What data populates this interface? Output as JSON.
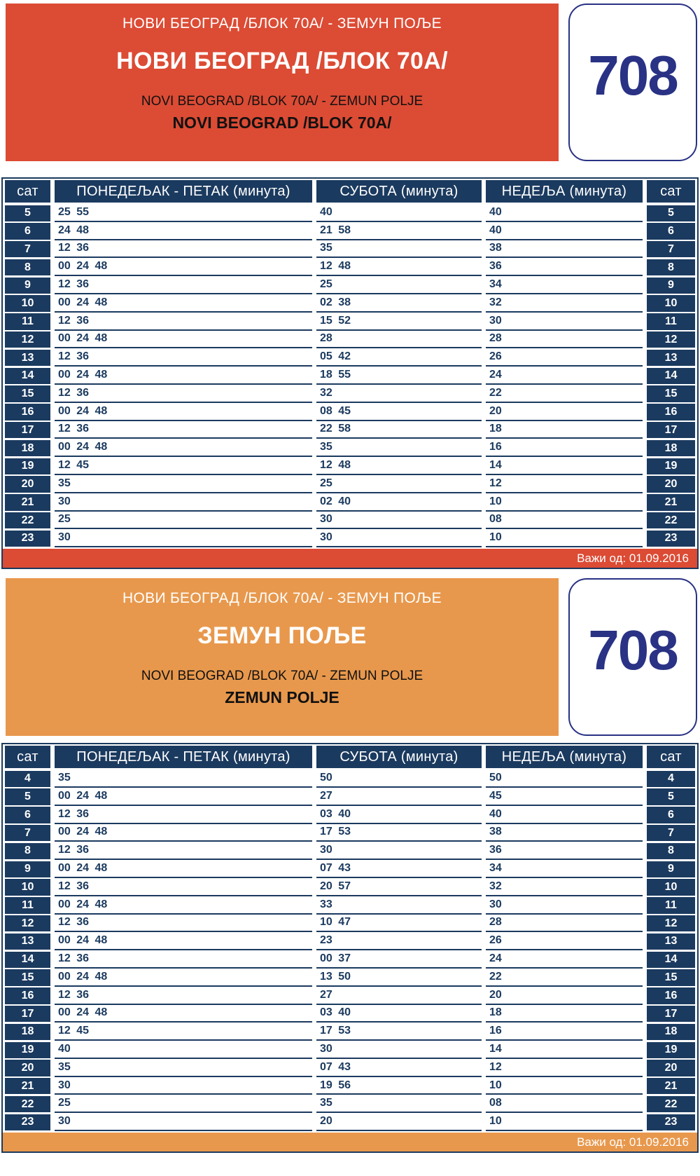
{
  "route_number": "708",
  "valid_from_label": "Важи од: 01.09.2016",
  "colors": {
    "red": "#dc4b34",
    "orange": "#e8984c",
    "navy": "#1b3a5f",
    "route_blue": "#293284"
  },
  "table_headers": {
    "hour": "сат",
    "weekday": "ПОНЕДЕЉАК - ПЕТАК (минута)",
    "saturday": "СУБОТА (минута)",
    "sunday": "НЕДЕЉА (минута)"
  },
  "sections": [
    {
      "name": "novi-beograd-blok-70a",
      "accent": "red",
      "header": {
        "route_cyrillic": "НОВИ БЕОГРАД /БЛОК 70А/ - ЗЕМУН ПОЉЕ",
        "terminal_cyrillic": "НОВИ БЕОГРАД /БЛОК 70А/",
        "route_latin": "NOVI BEOGRAD /BLOK 70A/ - ZEMUN POLJE",
        "terminal_latin": "NOVI BEOGRAD /BLOK 70A/"
      },
      "rows": [
        [
          "5",
          "25 55",
          "40",
          "40"
        ],
        [
          "6",
          "24 48",
          "21 58",
          "40"
        ],
        [
          "7",
          "12 36",
          "35",
          "38"
        ],
        [
          "8",
          "00 24 48",
          "12 48",
          "36"
        ],
        [
          "9",
          "12 36",
          "25",
          "34"
        ],
        [
          "10",
          "00 24 48",
          "02 38",
          "32"
        ],
        [
          "11",
          "12 36",
          "15 52",
          "30"
        ],
        [
          "12",
          "00 24 48",
          "28",
          "28"
        ],
        [
          "13",
          "12 36",
          "05 42",
          "26"
        ],
        [
          "14",
          "00 24 48",
          "18 55",
          "24"
        ],
        [
          "15",
          "12 36",
          "32",
          "22"
        ],
        [
          "16",
          "00 24 48",
          "08 45",
          "20"
        ],
        [
          "17",
          "12 36",
          "22 58",
          "18"
        ],
        [
          "18",
          "00 24 48",
          "35",
          "16"
        ],
        [
          "19",
          "12 45",
          "12 48",
          "14"
        ],
        [
          "20",
          "35",
          "25",
          "12"
        ],
        [
          "21",
          "30",
          "02 40",
          "10"
        ],
        [
          "22",
          "25",
          "30",
          "08"
        ],
        [
          "23",
          "30",
          "30",
          "10"
        ]
      ]
    },
    {
      "name": "zemun-polje",
      "accent": "orange",
      "header": {
        "route_cyrillic": "НОВИ БЕОГРАД /БЛОК 70А/ - ЗЕМУН ПОЉЕ",
        "terminal_cyrillic": "ЗЕМУН ПОЉЕ",
        "route_latin": "NOVI BEOGRAD /BLOK 70A/ - ZEMUN POLJE",
        "terminal_latin": "ZEMUN POLJE"
      },
      "rows": [
        [
          "4",
          "35",
          "50",
          "50"
        ],
        [
          "5",
          "00 24 48",
          "27",
          "45"
        ],
        [
          "6",
          "12 36",
          "03 40",
          "40"
        ],
        [
          "7",
          "00 24 48",
          "17 53",
          "38"
        ],
        [
          "8",
          "12 36",
          "30",
          "36"
        ],
        [
          "9",
          "00 24 48",
          "07 43",
          "34"
        ],
        [
          "10",
          "12 36",
          "20 57",
          "32"
        ],
        [
          "11",
          "00 24 48",
          "33",
          "30"
        ],
        [
          "12",
          "12 36",
          "10 47",
          "28"
        ],
        [
          "13",
          "00 24 48",
          "23",
          "26"
        ],
        [
          "14",
          "12 36",
          "00 37",
          "24"
        ],
        [
          "15",
          "00 24 48",
          "13 50",
          "22"
        ],
        [
          "16",
          "12 36",
          "27",
          "20"
        ],
        [
          "17",
          "00 24 48",
          "03 40",
          "18"
        ],
        [
          "18",
          "12 45",
          "17 53",
          "16"
        ],
        [
          "19",
          "40",
          "30",
          "14"
        ],
        [
          "20",
          "35",
          "07 43",
          "12"
        ],
        [
          "21",
          "30",
          "19 56",
          "10"
        ],
        [
          "22",
          "25",
          "35",
          "08"
        ],
        [
          "23",
          "30",
          "20",
          "10"
        ]
      ]
    }
  ]
}
